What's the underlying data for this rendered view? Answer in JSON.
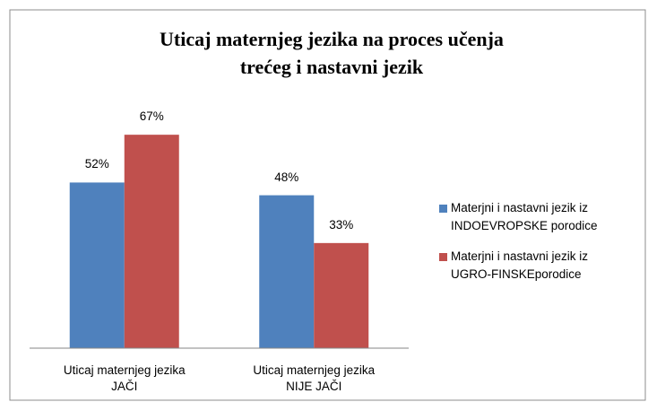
{
  "chart_data": {
    "type": "bar",
    "title": "Uticaj maternjeg jezika na proces učenja\ntrećeg i nastavni jezik",
    "categories": [
      "Uticaj maternjeg jezika\nJAČI",
      "Uticaj maternjeg jezika\nNIJE JAČI"
    ],
    "series": [
      {
        "name": "Materjni i nastavni jezik iz\nINDOEVROPSKE porodice",
        "color": "#4f81bd",
        "values": [
          52,
          48
        ],
        "value_labels": [
          "52%",
          "48%"
        ]
      },
      {
        "name": "Materjni i nastavni jezik iz\nUGRO-FINSKEporodice",
        "color": "#c0504d",
        "values": [
          67,
          33
        ],
        "value_labels": [
          "67%",
          "33%"
        ]
      }
    ],
    "ylim": [
      0,
      80
    ]
  }
}
